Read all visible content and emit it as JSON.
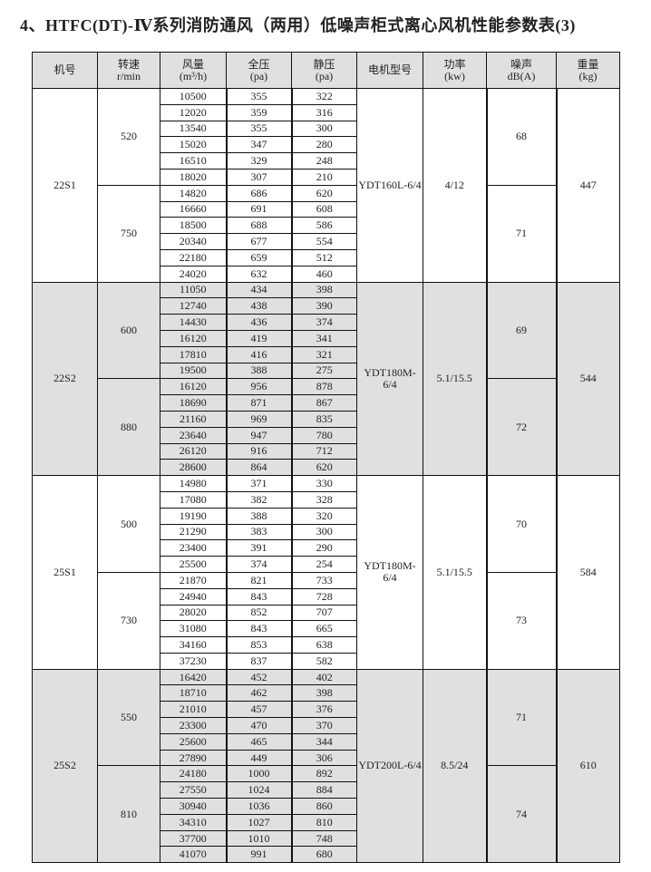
{
  "title": "4、HTFC(DT)-Ⅳ系列消防通风（两用）低噪声柜式离心风机性能参数表(3)",
  "headers": [
    {
      "l1": "机号",
      "l2": ""
    },
    {
      "l1": "转速",
      "l2": "r/min"
    },
    {
      "l1": "风量",
      "l2": "(m³/h)"
    },
    {
      "l1": "全压",
      "l2": "(pa)"
    },
    {
      "l1": "静压",
      "l2": "(pa)"
    },
    {
      "l1": "电机型号",
      "l2": ""
    },
    {
      "l1": "功率",
      "l2": "(kw)"
    },
    {
      "l1": "噪声",
      "l2": "dB(A)"
    },
    {
      "l1": "重量",
      "l2": "(kg)"
    }
  ],
  "groups": [
    {
      "model": "22S1",
      "motor": "YDT160L-6/4",
      "power": "4/12",
      "weight": "447",
      "shaded": false,
      "speeds": [
        {
          "rpm": "520",
          "noise": "68",
          "rows": [
            [
              "10500",
              "355",
              "322"
            ],
            [
              "12020",
              "359",
              "316"
            ],
            [
              "13540",
              "355",
              "300"
            ],
            [
              "15020",
              "347",
              "280"
            ],
            [
              "16510",
              "329",
              "248"
            ],
            [
              "18020",
              "307",
              "210"
            ]
          ]
        },
        {
          "rpm": "750",
          "noise": "71",
          "rows": [
            [
              "14820",
              "686",
              "620"
            ],
            [
              "16660",
              "691",
              "608"
            ],
            [
              "18500",
              "688",
              "586"
            ],
            [
              "20340",
              "677",
              "554"
            ],
            [
              "22180",
              "659",
              "512"
            ],
            [
              "24020",
              "632",
              "460"
            ]
          ]
        }
      ]
    },
    {
      "model": "22S2",
      "motor": "YDT180M-6/4",
      "power": "5.1/15.5",
      "weight": "544",
      "shaded": true,
      "speeds": [
        {
          "rpm": "600",
          "noise": "69",
          "rows": [
            [
              "11050",
              "434",
              "398"
            ],
            [
              "12740",
              "438",
              "390"
            ],
            [
              "14430",
              "436",
              "374"
            ],
            [
              "16120",
              "419",
              "341"
            ],
            [
              "17810",
              "416",
              "321"
            ],
            [
              "19500",
              "388",
              "275"
            ]
          ]
        },
        {
          "rpm": "880",
          "noise": "72",
          "rows": [
            [
              "16120",
              "956",
              "878"
            ],
            [
              "18690",
              "871",
              "867"
            ],
            [
              "21160",
              "969",
              "835"
            ],
            [
              "23640",
              "947",
              "780"
            ],
            [
              "26120",
              "916",
              "712"
            ],
            [
              "28600",
              "864",
              "620"
            ]
          ]
        }
      ]
    },
    {
      "model": "25S1",
      "motor": "YDT180M-6/4",
      "power": "5.1/15.5",
      "weight": "584",
      "shaded": false,
      "speeds": [
        {
          "rpm": "500",
          "noise": "70",
          "rows": [
            [
              "14980",
              "371",
              "330"
            ],
            [
              "17080",
              "382",
              "328"
            ],
            [
              "19190",
              "388",
              "320"
            ],
            [
              "21290",
              "383",
              "300"
            ],
            [
              "23400",
              "391",
              "290"
            ],
            [
              "25500",
              "374",
              "254"
            ]
          ]
        },
        {
          "rpm": "730",
          "noise": "73",
          "rows": [
            [
              "21870",
              "821",
              "733"
            ],
            [
              "24940",
              "843",
              "728"
            ],
            [
              "28020",
              "852",
              "707"
            ],
            [
              "31080",
              "843",
              "665"
            ],
            [
              "34160",
              "853",
              "638"
            ],
            [
              "37230",
              "837",
              "582"
            ]
          ]
        }
      ]
    },
    {
      "model": "25S2",
      "motor": "YDT200L-6/4",
      "power": "8.5/24",
      "weight": "610",
      "shaded": true,
      "speeds": [
        {
          "rpm": "550",
          "noise": "71",
          "rows": [
            [
              "16420",
              "452",
              "402"
            ],
            [
              "18710",
              "462",
              "398"
            ],
            [
              "21010",
              "457",
              "376"
            ],
            [
              "23300",
              "470",
              "370"
            ],
            [
              "25600",
              "465",
              "344"
            ],
            [
              "27890",
              "449",
              "306"
            ]
          ]
        },
        {
          "rpm": "810",
          "noise": "74",
          "rows": [
            [
              "24180",
              "1000",
              "892"
            ],
            [
              "27550",
              "1024",
              "884"
            ],
            [
              "30940",
              "1036",
              "860"
            ],
            [
              "34310",
              "1027",
              "810"
            ],
            [
              "37700",
              "1010",
              "748"
            ],
            [
              "41070",
              "991",
              "680"
            ]
          ]
        }
      ]
    }
  ]
}
